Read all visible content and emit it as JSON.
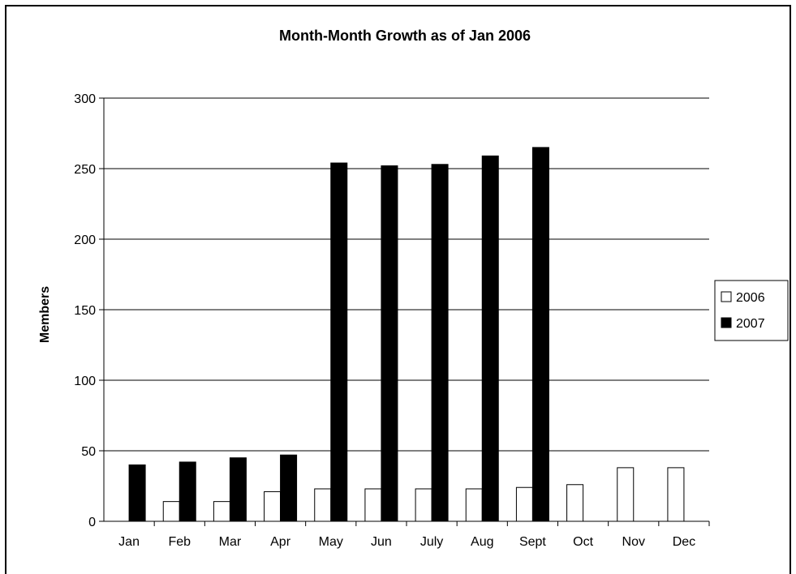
{
  "chart_data": {
    "type": "bar",
    "title": "Month-Month Growth as of Jan 2006",
    "xlabel": "",
    "ylabel": "Members",
    "ylim": [
      0,
      300
    ],
    "yticks": [
      0,
      50,
      100,
      150,
      200,
      250,
      300
    ],
    "grid": true,
    "legend_position": "right",
    "categories": [
      "Jan",
      "Feb",
      "Mar",
      "Apr",
      "May",
      "Jun",
      "July",
      "Aug",
      "Sept",
      "Oct",
      "Nov",
      "Dec"
    ],
    "series": [
      {
        "name": "2006",
        "color": "#ffffff",
        "values": [
          null,
          14,
          14,
          21,
          23,
          23,
          23,
          23,
          24,
          26,
          38,
          38
        ]
      },
      {
        "name": "2007",
        "color": "#000000",
        "values": [
          40,
          42,
          45,
          47,
          254,
          252,
          253,
          259,
          265,
          null,
          null,
          null
        ]
      }
    ]
  }
}
